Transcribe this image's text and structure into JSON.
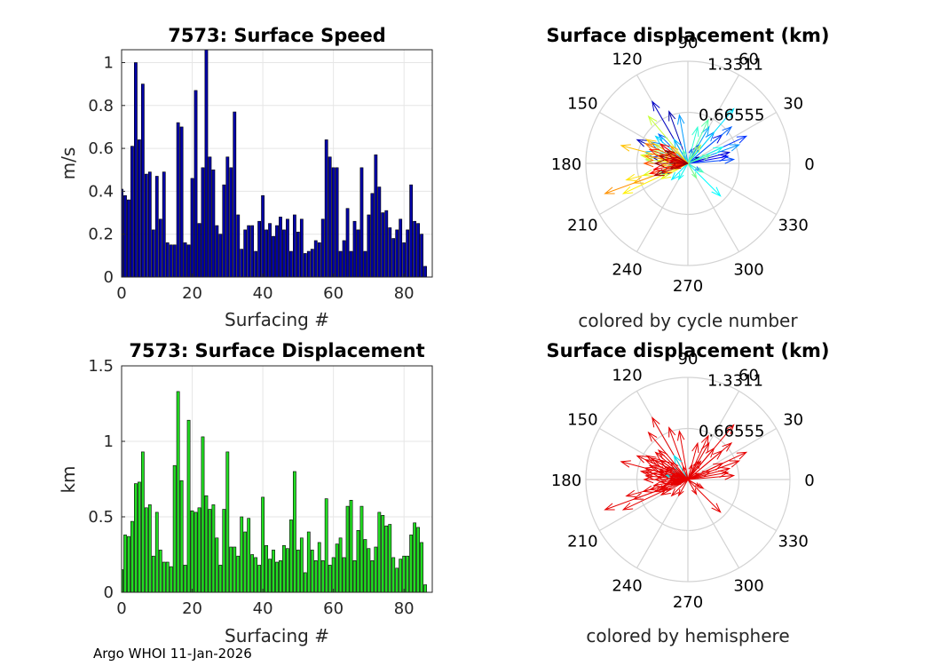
{
  "footer": "Argo WHOI 11-Jan-2026",
  "colors": {
    "speed_fill": "#0000a8",
    "speed_edge": "#000000",
    "disp_fill": "#22dd22",
    "disp_edge": "#000000",
    "north": "#00e5ee",
    "south": "#e60000"
  },
  "chart_data": [
    {
      "type": "bar",
      "title": "7573: Surface Speed",
      "xlabel": "Surfacing #",
      "ylabel": "m/s",
      "xlim": [
        0,
        88
      ],
      "ylim": [
        0,
        1.06
      ],
      "xticks": [
        0,
        20,
        40,
        60,
        80
      ],
      "yticks": [
        0,
        0.2,
        0.4,
        0.6,
        0.8,
        1
      ],
      "xtick_labels": [
        "0",
        "20",
        "40",
        "60",
        "80"
      ],
      "ytick_labels": [
        "0",
        "0.2",
        "0.4",
        "0.6",
        "0.8",
        "1"
      ],
      "x": [
        0,
        1,
        2,
        3,
        4,
        5,
        6,
        7,
        8,
        9,
        10,
        11,
        12,
        13,
        14,
        15,
        16,
        17,
        18,
        19,
        20,
        21,
        22,
        23,
        24,
        25,
        26,
        27,
        28,
        29,
        30,
        31,
        32,
        33,
        34,
        35,
        36,
        37,
        38,
        39,
        40,
        41,
        42,
        43,
        44,
        45,
        46,
        47,
        48,
        49,
        50,
        51,
        52,
        53,
        54,
        55,
        56,
        57,
        58,
        59,
        60,
        61,
        62,
        63,
        64,
        65,
        66,
        67,
        68,
        69,
        70,
        71,
        72,
        73,
        74,
        75,
        76,
        77,
        78,
        79,
        80,
        81,
        82,
        83,
        84,
        85,
        86
      ],
      "values": [
        0.41,
        0.38,
        0.36,
        0.61,
        1.0,
        0.64,
        0.9,
        0.48,
        0.49,
        0.22,
        0.47,
        0.27,
        0.49,
        0.16,
        0.15,
        0.15,
        0.72,
        0.7,
        0.16,
        0.15,
        0.46,
        0.87,
        0.25,
        0.51,
        1.06,
        0.56,
        0.5,
        0.24,
        0.2,
        0.43,
        0.56,
        0.51,
        0.77,
        0.29,
        0.13,
        0.22,
        0.24,
        0.24,
        0.12,
        0.26,
        0.38,
        0.22,
        0.25,
        0.19,
        0.24,
        0.28,
        0.22,
        0.27,
        0.12,
        0.29,
        0.21,
        0.27,
        0.11,
        0.12,
        0.13,
        0.17,
        0.16,
        0.27,
        0.64,
        0.56,
        0.51,
        0.51,
        0.12,
        0.17,
        0.32,
        0.12,
        0.26,
        0.22,
        0.51,
        0.12,
        0.29,
        0.39,
        0.57,
        0.42,
        0.3,
        0.31,
        0.23,
        0.18,
        0.22,
        0.27,
        0.16,
        0.22,
        0.43,
        0.26,
        0.25,
        0.2,
        0.05
      ]
    },
    {
      "type": "bar",
      "title": "7573: Surface Displacement",
      "xlabel": "Surfacing #",
      "ylabel": "km",
      "xlim": [
        0,
        88
      ],
      "ylim": [
        0,
        1.5
      ],
      "xticks": [
        0,
        20,
        40,
        60,
        80
      ],
      "yticks": [
        0,
        0.5,
        1,
        1.5
      ],
      "xtick_labels": [
        "0",
        "20",
        "40",
        "60",
        "80"
      ],
      "ytick_labels": [
        "0",
        "0.5",
        "1",
        "1.5"
      ],
      "x": [
        0,
        1,
        2,
        3,
        4,
        5,
        6,
        7,
        8,
        9,
        10,
        11,
        12,
        13,
        14,
        15,
        16,
        17,
        18,
        19,
        20,
        21,
        22,
        23,
        24,
        25,
        26,
        27,
        28,
        29,
        30,
        31,
        32,
        33,
        34,
        35,
        36,
        37,
        38,
        39,
        40,
        41,
        42,
        43,
        44,
        45,
        46,
        47,
        48,
        49,
        50,
        51,
        52,
        53,
        54,
        55,
        56,
        57,
        58,
        59,
        60,
        61,
        62,
        63,
        64,
        65,
        66,
        67,
        68,
        69,
        70,
        71,
        72,
        73,
        74,
        75,
        76,
        77,
        78,
        79,
        80,
        81,
        82,
        83,
        84,
        85,
        86
      ],
      "values": [
        0.15,
        0.38,
        0.37,
        0.47,
        0.72,
        0.73,
        0.93,
        0.56,
        0.58,
        0.24,
        0.53,
        0.28,
        0.2,
        0.2,
        0.17,
        0.84,
        1.33,
        0.74,
        0.18,
        1.14,
        0.54,
        0.53,
        0.56,
        1.03,
        0.64,
        0.55,
        0.58,
        0.36,
        0.18,
        0.55,
        0.93,
        0.3,
        0.3,
        0.24,
        0.5,
        0.4,
        0.49,
        0.25,
        0.23,
        0.18,
        0.63,
        0.31,
        0.22,
        0.28,
        0.2,
        0.21,
        0.31,
        0.29,
        0.48,
        0.8,
        0.28,
        0.36,
        0.13,
        0.4,
        0.28,
        0.21,
        0.33,
        0.21,
        0.62,
        0.18,
        0.23,
        0.32,
        0.36,
        0.23,
        0.57,
        0.61,
        0.21,
        0.41,
        0.57,
        0.35,
        0.29,
        0.21,
        0.3,
        0.53,
        0.51,
        0.44,
        0.45,
        0.23,
        0.16,
        0.22,
        0.24,
        0.24,
        0.38,
        0.46,
        0.43,
        0.33,
        0.05
      ]
    },
    {
      "type": "polar-compass",
      "title": "Surface displacement (km)",
      "caption": "colored by cycle number",
      "r_max": 1.3311,
      "rings": [
        0.66555,
        1.3311
      ],
      "ring_labels": [
        "0.66555",
        "1.3311"
      ],
      "angle_labels": [
        "0",
        "30",
        "60",
        "90",
        "120",
        "150",
        "180",
        "210",
        "240",
        "270",
        "300",
        "330"
      ],
      "colormap": "jet",
      "vectors": [
        {
          "dir": 30,
          "r": 0.16
        },
        {
          "dir": 200,
          "r": 0.38
        },
        {
          "dir": 165,
          "r": 0.38
        },
        {
          "dir": 170,
          "r": 0.47
        },
        {
          "dir": 110,
          "r": 0.72
        },
        {
          "dir": 155,
          "r": 0.73
        },
        {
          "dir": 120,
          "r": 0.93
        },
        {
          "dir": 15,
          "r": 0.56
        },
        {
          "dir": 40,
          "r": 0.58
        },
        {
          "dir": 180,
          "r": 0.24
        },
        {
          "dir": 10,
          "r": 0.53
        },
        {
          "dir": 60,
          "r": 0.28
        },
        {
          "dir": 75,
          "r": 0.2
        },
        {
          "dir": 195,
          "r": 0.2
        },
        {
          "dir": 160,
          "r": 0.17
        },
        {
          "dir": 25,
          "r": 0.84
        },
        {
          "dir": 145,
          "r": 0.44
        },
        {
          "dir": 5,
          "r": 0.6
        },
        {
          "dir": 330,
          "r": 0.18
        },
        {
          "dir": 40,
          "r": 0.74
        },
        {
          "dir": 135,
          "r": 0.54
        },
        {
          "dir": 50,
          "r": 0.53
        },
        {
          "dir": 150,
          "r": 0.56
        },
        {
          "dir": 20,
          "r": 0.71
        },
        {
          "dir": 100,
          "r": 0.64
        },
        {
          "dir": 60,
          "r": 0.55
        },
        {
          "dir": 165,
          "r": 0.58
        },
        {
          "dir": 120,
          "r": 0.36
        },
        {
          "dir": 200,
          "r": 0.18
        },
        {
          "dir": 140,
          "r": 0.55
        },
        {
          "dir": 50,
          "r": 0.93
        },
        {
          "dir": 225,
          "r": 0.3
        },
        {
          "dir": 315,
          "r": 0.6
        },
        {
          "dir": 240,
          "r": 0.24
        },
        {
          "dir": 25,
          "r": 0.5
        },
        {
          "dir": 160,
          "r": 0.4
        },
        {
          "dir": 75,
          "r": 0.49
        },
        {
          "dir": 185,
          "r": 0.25
        },
        {
          "dir": 330,
          "r": 0.23
        },
        {
          "dir": 110,
          "r": 0.18
        },
        {
          "dir": 65,
          "r": 0.63
        },
        {
          "dir": 20,
          "r": 0.31
        },
        {
          "dir": 300,
          "r": 0.22
        },
        {
          "dir": 190,
          "r": 0.28
        },
        {
          "dir": 150,
          "r": 0.5
        },
        {
          "dir": 200,
          "r": 0.41
        },
        {
          "dir": 175,
          "r": 0.55
        },
        {
          "dir": 55,
          "r": 0.29
        },
        {
          "dir": 160,
          "r": 0.48
        },
        {
          "dir": 130,
          "r": 0.8
        },
        {
          "dir": 195,
          "r": 0.6
        },
        {
          "dir": 170,
          "r": 0.62
        },
        {
          "dir": 210,
          "r": 0.4
        },
        {
          "dir": 175,
          "r": 0.4
        },
        {
          "dir": 145,
          "r": 0.28
        },
        {
          "dir": 205,
          "r": 0.93
        },
        {
          "dir": 195,
          "r": 0.83
        },
        {
          "dir": 160,
          "r": 0.33
        },
        {
          "dir": 150,
          "r": 0.62
        },
        {
          "dir": 165,
          "r": 0.9
        },
        {
          "dir": 200,
          "r": 0.75
        },
        {
          "dir": 135,
          "r": 0.32
        },
        {
          "dir": 185,
          "r": 0.36
        },
        {
          "dir": 200,
          "r": 1.15
        },
        {
          "dir": 170,
          "r": 0.57
        },
        {
          "dir": 155,
          "r": 0.61
        },
        {
          "dir": 195,
          "r": 0.21
        },
        {
          "dir": 165,
          "r": 0.41
        },
        {
          "dir": 180,
          "r": 0.57
        },
        {
          "dir": 200,
          "r": 0.35
        },
        {
          "dir": 150,
          "r": 0.29
        },
        {
          "dir": 185,
          "r": 0.21
        },
        {
          "dir": 170,
          "r": 0.3
        },
        {
          "dir": 160,
          "r": 0.53
        },
        {
          "dir": 195,
          "r": 0.51
        },
        {
          "dir": 145,
          "r": 0.44
        },
        {
          "dir": 190,
          "r": 0.45
        },
        {
          "dir": 170,
          "r": 0.23
        },
        {
          "dir": 205,
          "r": 0.16
        },
        {
          "dir": 160,
          "r": 0.22
        },
        {
          "dir": 175,
          "r": 0.24
        },
        {
          "dir": 195,
          "r": 0.24
        },
        {
          "dir": 165,
          "r": 0.38
        },
        {
          "dir": 200,
          "r": 0.46
        },
        {
          "dir": 180,
          "r": 0.43
        },
        {
          "dir": 150,
          "r": 0.33
        },
        {
          "dir": 190,
          "r": 0.05
        }
      ]
    },
    {
      "type": "polar-compass",
      "title": "Surface displacement (km)",
      "caption": "colored by hemisphere",
      "r_max": 1.3311,
      "rings": [
        0.66555,
        1.3311
      ],
      "ring_labels": [
        "0.66555",
        "1.3311"
      ],
      "angle_labels": [
        "0",
        "30",
        "60",
        "90",
        "120",
        "150",
        "180",
        "210",
        "240",
        "270",
        "300",
        "330"
      ],
      "colormap": "hemisphere"
    }
  ]
}
